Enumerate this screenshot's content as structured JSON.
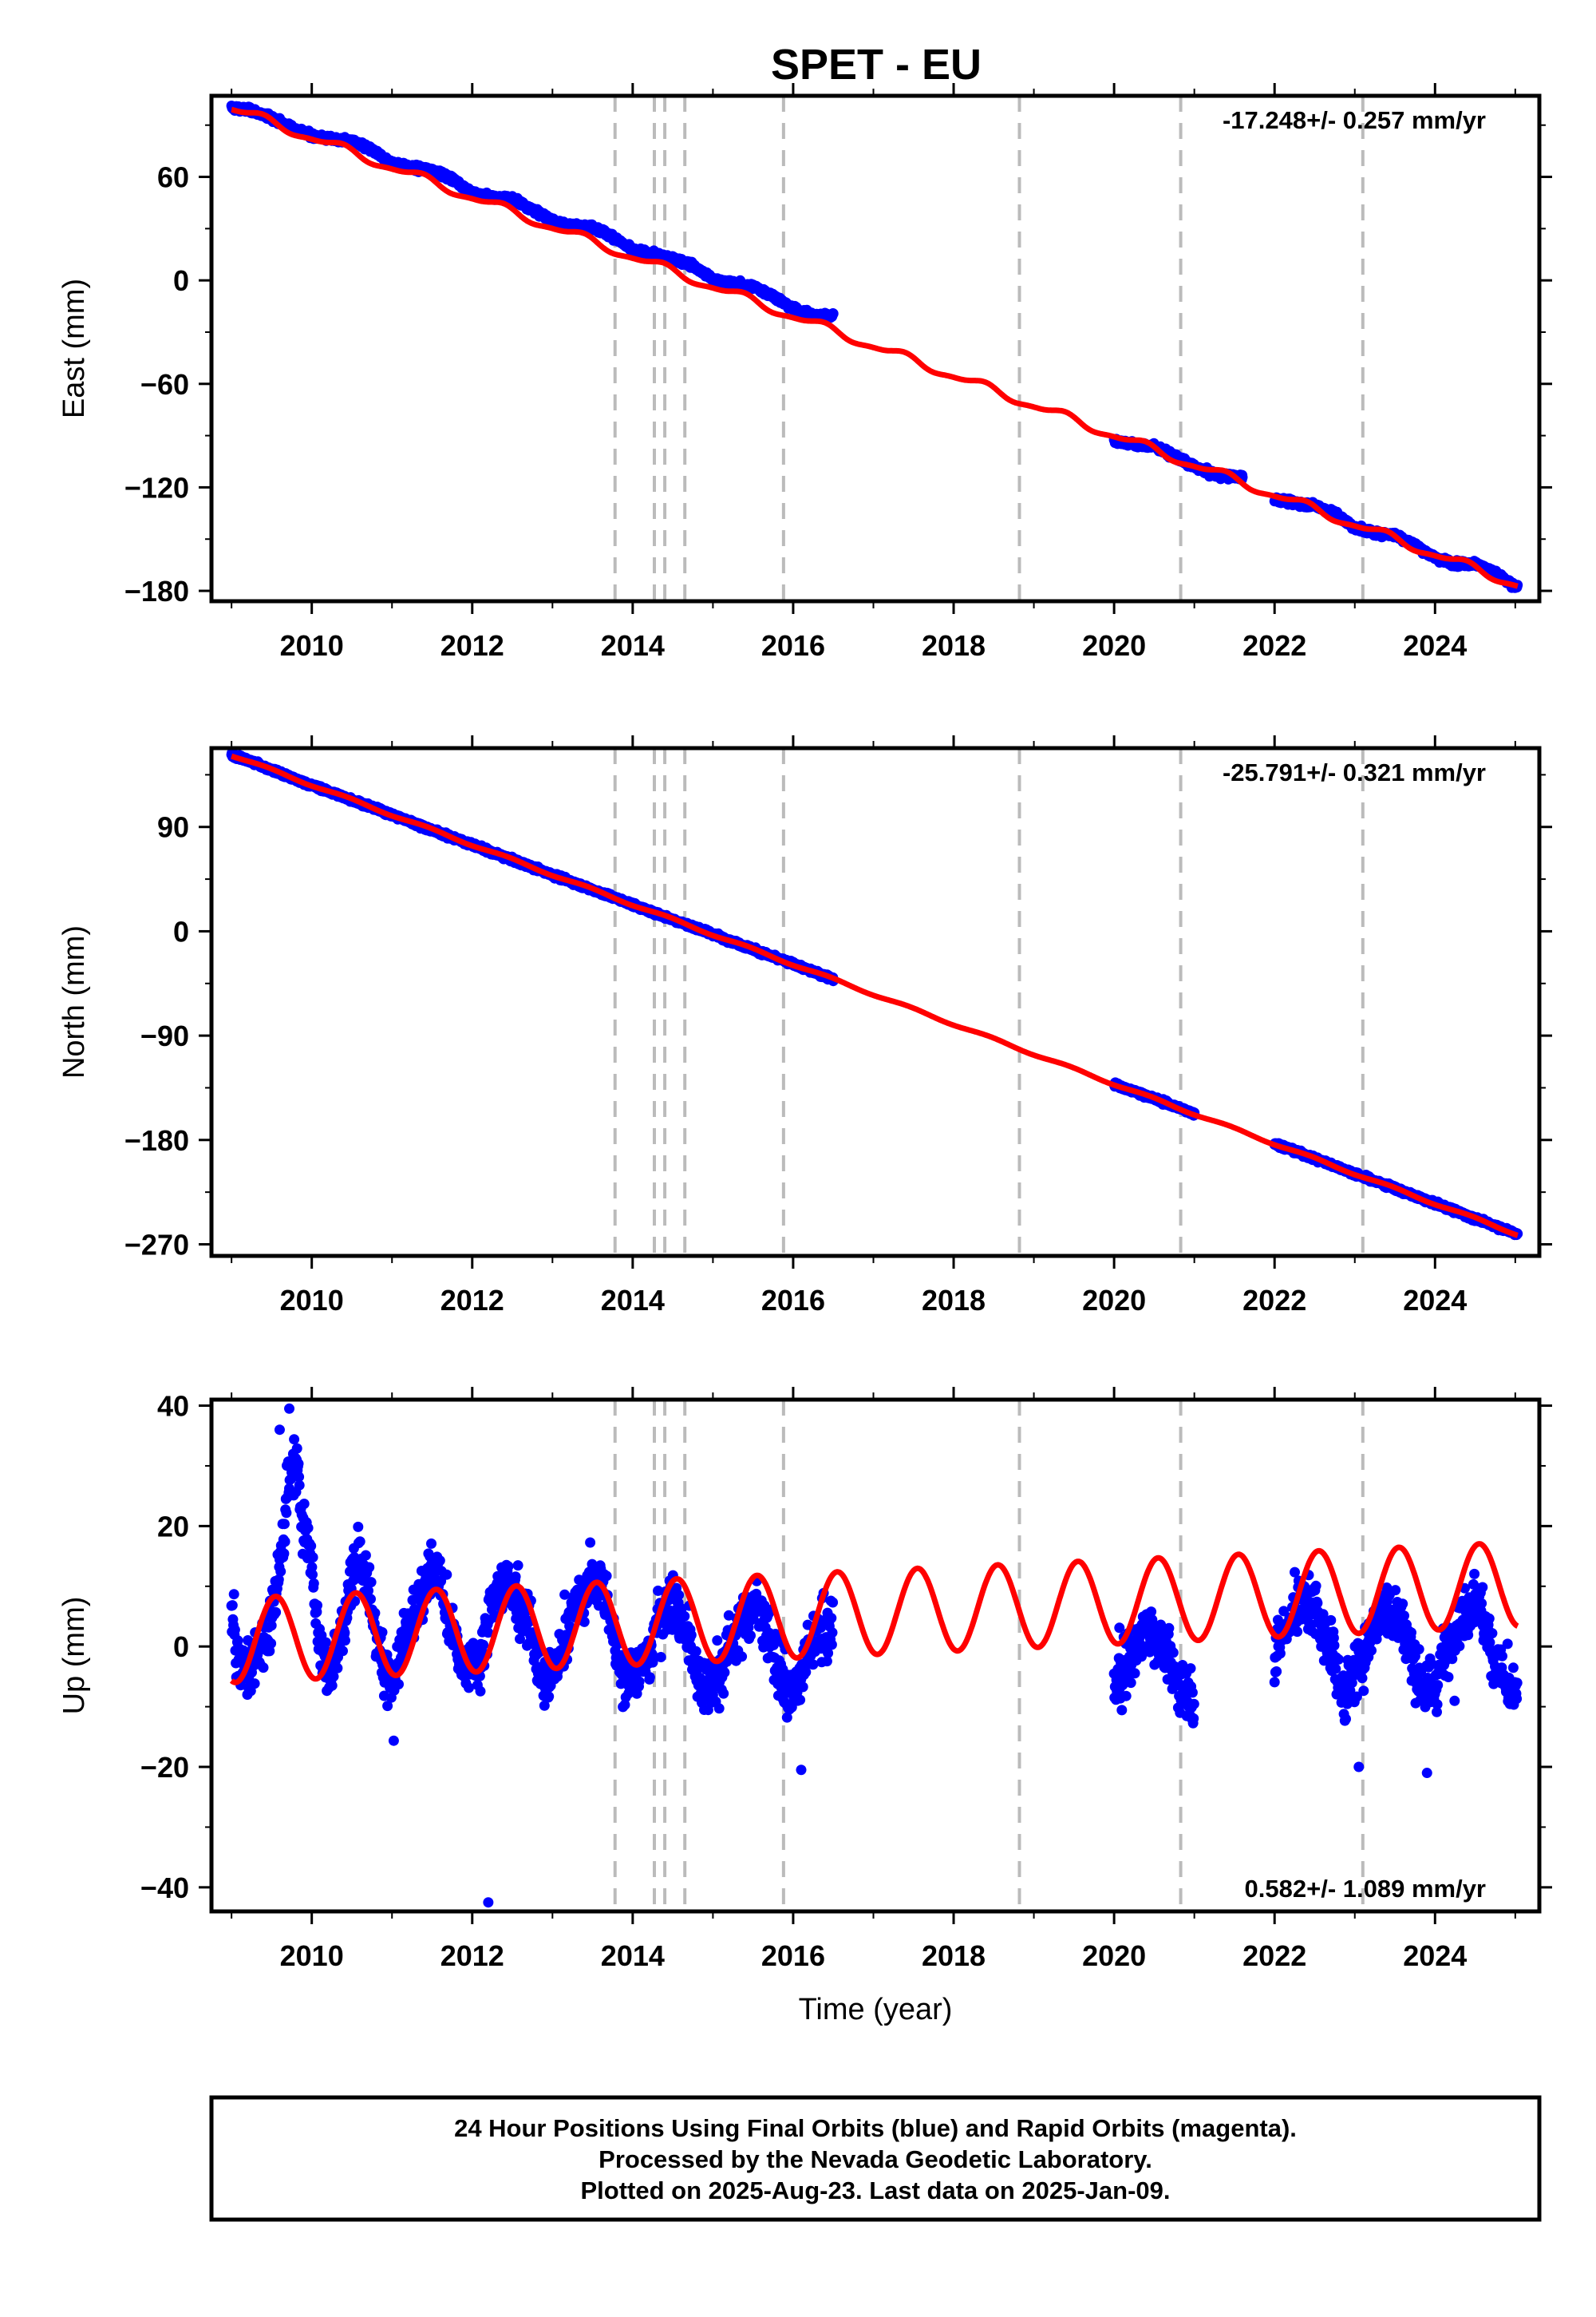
{
  "title": "SPET - EU",
  "footer": {
    "line1": "24 Hour Positions Using Final Orbits (blue) and Rapid Orbits (magenta).",
    "line2": "Processed by the Nevada Geodetic Laboratory.",
    "line3": "Plotted on 2025-Aug-23. Last data on 2025-Jan-09."
  },
  "colors": {
    "data": "#0000ff",
    "model": "#ff0000",
    "steps": "#bbbbbb",
    "frame": "#000000"
  },
  "chart_data": [
    {
      "type": "scatter",
      "component": "east",
      "ylabel": "East (mm)",
      "rate_label": "-17.248+/- 0.257 mm/yr",
      "xlim": [
        2008.75,
        2025.3
      ],
      "ylim": [
        -186,
        107
      ],
      "yticks": [
        -180,
        -120,
        -60,
        0,
        60
      ],
      "xticks": [
        2010,
        2012,
        2014,
        2016,
        2018,
        2020,
        2022,
        2024
      ],
      "grid": false,
      "step_epochs": [
        2013.78,
        2014.27,
        2014.4,
        2014.65,
        2015.88,
        2018.82,
        2020.83,
        2023.1
      ],
      "model": {
        "rate_mm_per_yr": -17.248,
        "intercept_at_2009": 100,
        "annual_amp_mm": 2.4,
        "annual_phase_yr": 0.1,
        "semiannual_amp_mm": 0.8,
        "semiannual_phase_yr": 0.3
      },
      "data_intervals": [
        [
          2009.0,
          2016.5
        ],
        [
          2020.0,
          2021.6
        ],
        [
          2022.0,
          2025.03
        ]
      ],
      "points": [
        [
          2009.0,
          100.2
        ],
        [
          2009.25,
          98.5
        ],
        [
          2009.5,
          94.1
        ],
        [
          2009.75,
          88.5
        ],
        [
          2010.0,
          83.9
        ],
        [
          2010.25,
          81.8
        ],
        [
          2010.5,
          80.6
        ],
        [
          2010.75,
          75.6
        ],
        [
          2011.0,
          68.0
        ],
        [
          2011.25,
          65.3
        ],
        [
          2011.5,
          63.9
        ],
        [
          2011.75,
          58.9
        ],
        [
          2012.0,
          50.6
        ],
        [
          2012.25,
          48.1
        ],
        [
          2012.5,
          47.4
        ],
        [
          2012.75,
          41.2
        ],
        [
          2013.0,
          34.5
        ],
        [
          2013.25,
          31.3
        ],
        [
          2013.5,
          30.8
        ],
        [
          2013.75,
          25.5
        ],
        [
          2014.0,
          17.3
        ],
        [
          2014.25,
          14.9
        ],
        [
          2014.5,
          12.8
        ],
        [
          2014.75,
          8.6
        ],
        [
          2015.0,
          0.4
        ],
        [
          2015.25,
          -1.8
        ],
        [
          2015.5,
          -3.6
        ],
        [
          2015.75,
          -8.9
        ],
        [
          2016.0,
          -16.6
        ],
        [
          2016.25,
          -20.5
        ],
        [
          2016.5,
          -20.2
        ],
        [
          2020.0,
          -92.8
        ],
        [
          2020.25,
          -95.2
        ],
        [
          2020.5,
          -96.2
        ],
        [
          2020.75,
          -102.1
        ],
        [
          2021.0,
          -108.1
        ],
        [
          2021.25,
          -112.7
        ],
        [
          2021.5,
          -113.9
        ],
        [
          2022.0,
          -126.9
        ],
        [
          2022.25,
          -129.1
        ],
        [
          2022.5,
          -130.5
        ],
        [
          2022.75,
          -135.1
        ],
        [
          2023.0,
          -143.5
        ],
        [
          2023.25,
          -146.4
        ],
        [
          2023.5,
          -147.4
        ],
        [
          2023.75,
          -153.6
        ],
        [
          2024.0,
          -160.8
        ],
        [
          2024.25,
          -164.2
        ],
        [
          2024.5,
          -164.2
        ],
        [
          2024.75,
          -169.8
        ],
        [
          2025.0,
          -177.7
        ]
      ]
    },
    {
      "type": "scatter",
      "component": "north",
      "ylabel": "North (mm)",
      "rate_label": "-25.791+/- 0.321 mm/yr",
      "xlim": [
        2008.75,
        2025.3
      ],
      "ylim": [
        -280,
        158
      ],
      "yticks": [
        -270,
        -180,
        -90,
        0,
        90
      ],
      "xticks": [
        2010,
        2012,
        2014,
        2016,
        2018,
        2020,
        2022,
        2024
      ],
      "grid": false,
      "step_epochs": [
        2013.78,
        2014.27,
        2014.4,
        2014.65,
        2015.88,
        2018.82,
        2020.83,
        2023.1
      ],
      "model": {
        "rate_mm_per_yr": -25.791,
        "intercept_at_2009": 152,
        "annual_amp_mm": 1.0,
        "annual_phase_yr": 0.2,
        "semiannual_amp_mm": 0.0,
        "semiannual_phase_yr": 0.0
      },
      "data_intervals": [
        [
          2009.0,
          2016.5
        ],
        [
          2020.0,
          2021.0
        ],
        [
          2022.0,
          2025.03
        ]
      ],
      "points": [
        [
          2009.0,
          152.4
        ],
        [
          2009.25,
          146.0
        ],
        [
          2009.5,
          139.2
        ],
        [
          2009.75,
          132.1
        ],
        [
          2010.0,
          126.1
        ],
        [
          2010.25,
          119.5
        ],
        [
          2010.5,
          113.4
        ],
        [
          2010.75,
          106.9
        ],
        [
          2011.0,
          100.5
        ],
        [
          2011.25,
          93.9
        ],
        [
          2011.5,
          87.3
        ],
        [
          2011.75,
          81.0
        ],
        [
          2012.0,
          74.7
        ],
        [
          2012.25,
          67.8
        ],
        [
          2012.5,
          61.7
        ],
        [
          2012.75,
          55.2
        ],
        [
          2013.0,
          48.8
        ],
        [
          2013.25,
          42.3
        ],
        [
          2013.5,
          35.8
        ],
        [
          2013.75,
          29.5
        ],
        [
          2014.0,
          23.0
        ],
        [
          2014.25,
          16.3
        ],
        [
          2014.5,
          10.2
        ],
        [
          2014.75,
          3.9
        ],
        [
          2015.0,
          -2.6
        ],
        [
          2015.25,
          -9.0
        ],
        [
          2015.5,
          -15.5
        ],
        [
          2015.75,
          -22.1
        ],
        [
          2016.0,
          -28.1
        ],
        [
          2016.25,
          -34.9
        ],
        [
          2016.5,
          -41.2
        ],
        [
          2020.0,
          -131.6
        ],
        [
          2020.25,
          -138.1
        ],
        [
          2020.5,
          -144.3
        ],
        [
          2020.75,
          -150.8
        ],
        [
          2021.0,
          -157.3
        ],
        [
          2022.0,
          -183.0
        ],
        [
          2022.25,
          -189.4
        ],
        [
          2022.5,
          -196.1
        ],
        [
          2022.75,
          -202.4
        ],
        [
          2023.0,
          -209.0
        ],
        [
          2023.25,
          -215.4
        ],
        [
          2023.5,
          -221.8
        ],
        [
          2023.75,
          -228.4
        ],
        [
          2024.0,
          -234.8
        ],
        [
          2024.25,
          -241.1
        ],
        [
          2024.5,
          -247.8
        ],
        [
          2024.75,
          -254.1
        ],
        [
          2025.0,
          -260.6
        ]
      ]
    },
    {
      "type": "scatter",
      "component": "up",
      "ylabel": "Up (mm)",
      "xlabel": "Time (year)",
      "rate_label": "0.582+/- 1.089 mm/yr",
      "xlim": [
        2008.75,
        2025.3
      ],
      "ylim": [
        -44,
        41
      ],
      "yticks": [
        -40,
        -20,
        0,
        20,
        40
      ],
      "xticks": [
        2010,
        2012,
        2014,
        2016,
        2018,
        2020,
        2022,
        2024
      ],
      "grid": false,
      "step_epochs": [
        2013.78,
        2014.27,
        2014.4,
        2014.65,
        2015.88,
        2018.82,
        2020.83,
        2023.1
      ],
      "model": {
        "rate_mm_per_yr": 0.582,
        "intercept_at_2009": 1.0,
        "annual_amp_mm": 7.0,
        "annual_phase_yr": 0.3,
        "semiannual_amp_mm": 0.0,
        "semiannual_phase_yr": 0.0
      },
      "data_intervals": [
        [
          2009.0,
          2016.5
        ],
        [
          2020.0,
          2021.0
        ],
        [
          2022.0,
          2025.03
        ]
      ],
      "points": [
        [
          2009.0,
          5.1
        ],
        [
          2009.1,
          -2.6
        ],
        [
          2009.2,
          -4.3
        ],
        [
          2009.3,
          -1.3
        ],
        [
          2009.4,
          0.5
        ],
        [
          2009.5,
          4.5
        ],
        [
          2009.6,
          13.5
        ],
        [
          2009.7,
          26.0
        ],
        [
          2009.8,
          30.2
        ],
        [
          2009.9,
          20.4
        ],
        [
          2010.0,
          14.1
        ],
        [
          2010.1,
          -0.3
        ],
        [
          2010.2,
          -4.0
        ],
        [
          2010.3,
          -1.6
        ],
        [
          2010.4,
          3.0
        ],
        [
          2010.5,
          12.0
        ],
        [
          2010.6,
          16.0
        ],
        [
          2010.7,
          8.6
        ],
        [
          2010.8,
          3.6
        ],
        [
          2010.9,
          -5.0
        ],
        [
          2011.0,
          -4.8
        ],
        [
          2011.1,
          -0.9
        ],
        [
          2011.2,
          3.5
        ],
        [
          2011.3,
          6.2
        ],
        [
          2011.4,
          8.2
        ],
        [
          2011.5,
          15.2
        ],
        [
          2011.6,
          10.2
        ],
        [
          2011.7,
          3.4
        ],
        [
          2011.8,
          0.5
        ],
        [
          2011.9,
          -5.5
        ],
        [
          2012.0,
          -2.6
        ],
        [
          2012.1,
          -2.6
        ],
        [
          2012.2,
          4.9
        ],
        [
          2012.3,
          8.5
        ],
        [
          2012.4,
          11.1
        ],
        [
          2012.5,
          9.7
        ],
        [
          2012.6,
          6.6
        ],
        [
          2012.7,
          4.9
        ],
        [
          2012.8,
          -2.6
        ],
        [
          2012.9,
          -6.5
        ],
        [
          2013.0,
          -4.7
        ],
        [
          2013.1,
          -1.9
        ],
        [
          2013.2,
          4.0
        ],
        [
          2013.3,
          5.6
        ],
        [
          2013.4,
          8.7
        ],
        [
          2013.5,
          11.6
        ],
        [
          2013.6,
          9.9
        ],
        [
          2013.7,
          5.8
        ],
        [
          2013.8,
          -0.6
        ],
        [
          2013.9,
          -3.8
        ],
        [
          2014.0,
          -4.8
        ],
        [
          2014.1,
          -3.6
        ],
        [
          2014.2,
          -2.4
        ],
        [
          2014.3,
          4.1
        ],
        [
          2014.4,
          6.9
        ],
        [
          2014.5,
          8.2
        ],
        [
          2014.6,
          4.2
        ],
        [
          2014.7,
          0.8
        ],
        [
          2014.8,
          -4.3
        ],
        [
          2014.9,
          -6.8
        ],
        [
          2015.0,
          -4.3
        ],
        [
          2015.1,
          -4.4
        ],
        [
          2015.2,
          0.0
        ],
        [
          2015.3,
          2.6
        ],
        [
          2015.4,
          5.1
        ],
        [
          2015.5,
          7.0
        ],
        [
          2015.6,
          5.9
        ],
        [
          2015.7,
          2.4
        ],
        [
          2015.8,
          -3.3
        ],
        [
          2015.9,
          -6.5
        ],
        [
          2016.0,
          -7.5
        ],
        [
          2016.1,
          -5.5
        ],
        [
          2016.2,
          -0.4
        ],
        [
          2016.3,
          1.9
        ],
        [
          2016.4,
          1.5
        ],
        [
          2016.5,
          4.0
        ],
        [
          2016.3,
          -7.0
        ],
        [
          2016.4,
          -10.2
        ],
        [
          2020.0,
          -6.5
        ],
        [
          2020.1,
          -4.5
        ],
        [
          2020.2,
          -1.8
        ],
        [
          2020.3,
          -0.1
        ],
        [
          2020.4,
          3.8
        ],
        [
          2020.5,
          2.9
        ],
        [
          2020.6,
          0.3
        ],
        [
          2020.7,
          -3.3
        ],
        [
          2020.8,
          -6.0
        ],
        [
          2020.9,
          -7.0
        ],
        [
          2021.0,
          -8.7
        ],
        [
          2022.0,
          -1.7
        ],
        [
          2022.1,
          2.5
        ],
        [
          2022.2,
          3.7
        ],
        [
          2022.3,
          9.0
        ],
        [
          2022.4,
          6.5
        ],
        [
          2022.5,
          7.1
        ],
        [
          2022.6,
          1.8
        ],
        [
          2022.7,
          0.6
        ],
        [
          2022.8,
          -6.2
        ],
        [
          2022.9,
          -7.9
        ],
        [
          2023.0,
          -5.1
        ],
        [
          2023.1,
          -1.5
        ],
        [
          2023.2,
          2.0
        ],
        [
          2023.3,
          5.2
        ],
        [
          2023.4,
          6.0
        ],
        [
          2023.5,
          5.4
        ],
        [
          2023.6,
          2.9
        ],
        [
          2023.7,
          -1.1
        ],
        [
          2023.8,
          -5.2
        ],
        [
          2023.9,
          -7.9
        ],
        [
          2024.0,
          -6.5
        ],
        [
          2024.1,
          -2.5
        ],
        [
          2024.2,
          1.1
        ],
        [
          2024.3,
          4.7
        ],
        [
          2024.4,
          5.6
        ],
        [
          2024.5,
          8.2
        ],
        [
          2024.6,
          4.6
        ],
        [
          2024.7,
          0.1
        ],
        [
          2024.8,
          -3.9
        ],
        [
          2024.9,
          -6.8
        ],
        [
          2025.0,
          -8.5
        ]
      ],
      "outliers": [
        [
          2012.2,
          -42.5
        ],
        [
          2009.72,
          39.5
        ],
        [
          2009.6,
          36.0
        ],
        [
          2023.05,
          -20.0
        ],
        [
          2023.9,
          -21.0
        ],
        [
          2016.1,
          -20.5
        ]
      ]
    }
  ]
}
